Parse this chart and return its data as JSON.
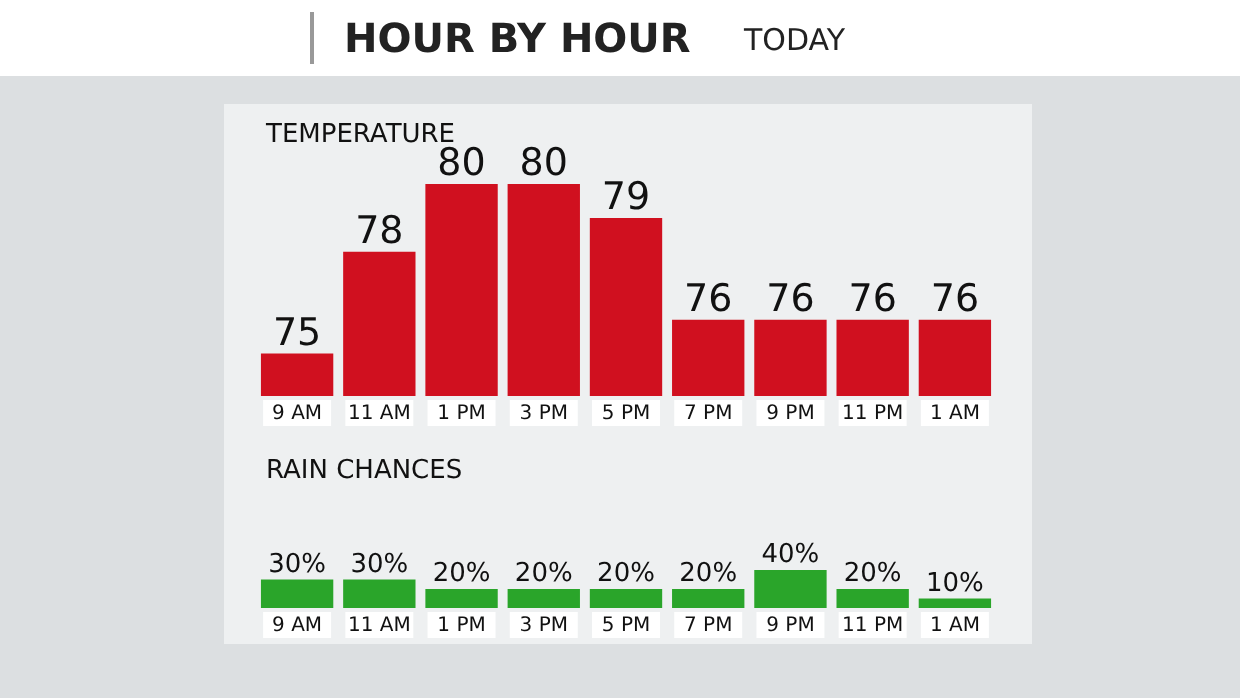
{
  "chart_data": [
    {
      "type": "other",
      "title": "HOUR BY HOUR",
      "subtitle": "TODAY"
    },
    {
      "type": "bar",
      "title": "TEMPERATURE",
      "categories": [
        "9 AM",
        "11 AM",
        "1 PM",
        "3 PM",
        "5 PM",
        "7 PM",
        "9 PM",
        "11 PM",
        "1 AM"
      ],
      "values": [
        75,
        78,
        80,
        80,
        79,
        76,
        76,
        76,
        76
      ],
      "color": "#d0101f",
      "ylim": [
        73.75,
        80
      ],
      "data_labels": true,
      "tick_labels": "x"
    },
    {
      "type": "bar",
      "title": "RAIN CHANCES",
      "categories": [
        "9 AM",
        "11 AM",
        "1 PM",
        "3 PM",
        "5 PM",
        "7 PM",
        "9 PM",
        "11 PM",
        "1 AM"
      ],
      "values": [
        30,
        30,
        20,
        20,
        20,
        20,
        40,
        20,
        10
      ],
      "value_labels": [
        "30%",
        "30%",
        "20%",
        "20%",
        "20%",
        "20%",
        "40%",
        "20%",
        "10%"
      ],
      "color": "#2aa52a",
      "tick_labels": "x"
    }
  ]
}
